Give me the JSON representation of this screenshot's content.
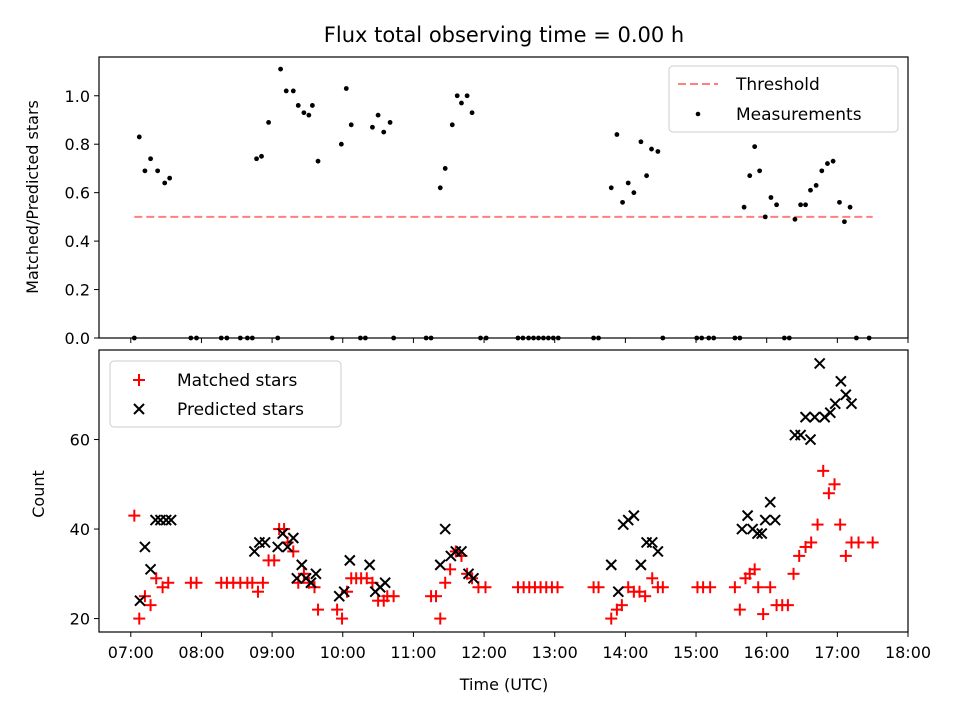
{
  "chart_data": [
    {
      "type": "scatter",
      "title": "Flux total observing time = 0.00 h",
      "xlabel": "",
      "ylabel": "Matched/Predicted stars",
      "xlim": [
        6.55,
        18.0
      ],
      "ylim": [
        0.0,
        1.16
      ],
      "yticks": [
        0.0,
        0.2,
        0.4,
        0.6,
        0.8,
        1.0
      ],
      "ytick_labels": [
        "0.0",
        "0.2",
        "0.4",
        "0.6",
        "0.8",
        "1.0"
      ],
      "grid": false,
      "legend_position": "top-right",
      "threshold": {
        "name": "Threshold",
        "color": "#ff7f7f",
        "y": 0.5,
        "x_start": 7.05,
        "x_end": 17.5,
        "style": "dashed"
      },
      "series": [
        {
          "name": "Measurements",
          "color": "#000000",
          "marker": "dot",
          "points": [
            [
              7.05,
              0.0
            ],
            [
              7.12,
              0.83
            ],
            [
              7.2,
              0.69
            ],
            [
              7.28,
              0.74
            ],
            [
              7.38,
              0.69
            ],
            [
              7.48,
              0.64
            ],
            [
              7.55,
              0.66
            ],
            [
              7.85,
              0.0
            ],
            [
              7.93,
              0.0
            ],
            [
              8.28,
              0.0
            ],
            [
              8.36,
              0.0
            ],
            [
              8.55,
              0.0
            ],
            [
              8.65,
              0.0
            ],
            [
              8.72,
              0.0
            ],
            [
              8.78,
              0.74
            ],
            [
              8.85,
              0.75
            ],
            [
              8.95,
              0.89
            ],
            [
              9.08,
              0.0
            ],
            [
              9.12,
              1.11
            ],
            [
              9.2,
              1.02
            ],
            [
              9.3,
              1.02
            ],
            [
              9.37,
              0.96
            ],
            [
              9.45,
              0.93
            ],
            [
              9.52,
              0.92
            ],
            [
              9.57,
              0.96
            ],
            [
              9.65,
              0.73
            ],
            [
              9.85,
              0.0
            ],
            [
              9.98,
              0.8
            ],
            [
              10.05,
              1.03
            ],
            [
              10.12,
              0.88
            ],
            [
              10.25,
              0.0
            ],
            [
              10.32,
              0.0
            ],
            [
              10.42,
              0.87
            ],
            [
              10.5,
              0.92
            ],
            [
              10.58,
              0.85
            ],
            [
              10.67,
              0.89
            ],
            [
              10.72,
              0.0
            ],
            [
              11.18,
              0.0
            ],
            [
              11.25,
              0.0
            ],
            [
              11.38,
              0.62
            ],
            [
              11.45,
              0.7
            ],
            [
              11.55,
              0.88
            ],
            [
              11.62,
              1.0
            ],
            [
              11.68,
              0.97
            ],
            [
              11.76,
              1.0
            ],
            [
              11.83,
              0.93
            ],
            [
              11.95,
              0.0
            ],
            [
              12.03,
              0.0
            ],
            [
              12.48,
              0.0
            ],
            [
              12.55,
              0.0
            ],
            [
              12.63,
              0.0
            ],
            [
              12.7,
              0.0
            ],
            [
              12.77,
              0.0
            ],
            [
              12.84,
              0.0
            ],
            [
              12.91,
              0.0
            ],
            [
              12.98,
              0.0
            ],
            [
              13.05,
              0.0
            ],
            [
              13.55,
              0.0
            ],
            [
              13.62,
              0.0
            ],
            [
              13.8,
              0.62
            ],
            [
              13.88,
              0.84
            ],
            [
              13.96,
              0.56
            ],
            [
              14.04,
              0.64
            ],
            [
              14.12,
              0.6
            ],
            [
              14.22,
              0.81
            ],
            [
              14.3,
              0.67
            ],
            [
              14.37,
              0.78
            ],
            [
              14.46,
              0.77
            ],
            [
              14.53,
              0.0
            ],
            [
              15.01,
              0.0
            ],
            [
              15.08,
              0.0
            ],
            [
              15.18,
              0.0
            ],
            [
              15.25,
              0.0
            ],
            [
              15.55,
              0.0
            ],
            [
              15.62,
              0.0
            ],
            [
              15.68,
              0.54
            ],
            [
              15.76,
              0.67
            ],
            [
              15.83,
              0.79
            ],
            [
              15.9,
              0.69
            ],
            [
              15.98,
              0.5
            ],
            [
              16.06,
              0.58
            ],
            [
              16.14,
              0.55
            ],
            [
              16.25,
              0.0
            ],
            [
              16.32,
              0.0
            ],
            [
              16.4,
              0.49
            ],
            [
              16.48,
              0.55
            ],
            [
              16.55,
              0.55
            ],
            [
              16.62,
              0.61
            ],
            [
              16.7,
              0.63
            ],
            [
              16.78,
              0.69
            ],
            [
              16.86,
              0.72
            ],
            [
              16.94,
              0.73
            ],
            [
              17.03,
              0.56
            ],
            [
              17.1,
              0.48
            ],
            [
              17.18,
              0.54
            ],
            [
              17.27,
              0.0
            ],
            [
              17.45,
              0.0
            ]
          ]
        }
      ]
    },
    {
      "type": "scatter",
      "title": "",
      "xlabel": "Time (UTC)",
      "ylabel": "Count",
      "xlim": [
        6.55,
        18.0
      ],
      "ylim": [
        17,
        80
      ],
      "yticks": [
        20,
        40,
        60
      ],
      "ytick_labels": [
        "20",
        "40",
        "60"
      ],
      "xticks": [
        7,
        8,
        9,
        10,
        11,
        12,
        13,
        14,
        15,
        16,
        17,
        18
      ],
      "xtick_labels": [
        "07:00",
        "08:00",
        "09:00",
        "10:00",
        "11:00",
        "12:00",
        "13:00",
        "14:00",
        "15:00",
        "16:00",
        "17:00",
        "18:00"
      ],
      "grid": false,
      "legend_position": "top-left",
      "series": [
        {
          "name": "Matched stars",
          "color": "#ff0000",
          "marker": "plus",
          "points": [
            [
              7.05,
              43
            ],
            [
              7.12,
              20
            ],
            [
              7.2,
              25
            ],
            [
              7.28,
              23
            ],
            [
              7.36,
              29
            ],
            [
              7.45,
              27
            ],
            [
              7.53,
              28
            ],
            [
              7.85,
              28
            ],
            [
              7.93,
              28
            ],
            [
              8.28,
              28
            ],
            [
              8.36,
              28
            ],
            [
              8.45,
              28
            ],
            [
              8.55,
              28
            ],
            [
              8.65,
              28
            ],
            [
              8.72,
              28
            ],
            [
              8.8,
              26
            ],
            [
              8.87,
              28
            ],
            [
              8.95,
              33
            ],
            [
              9.03,
              33
            ],
            [
              9.1,
              40
            ],
            [
              9.17,
              40
            ],
            [
              9.22,
              37
            ],
            [
              9.3,
              35
            ],
            [
              9.37,
              28
            ],
            [
              9.45,
              30
            ],
            [
              9.52,
              28
            ],
            [
              9.6,
              27
            ],
            [
              9.65,
              22
            ],
            [
              9.92,
              22
            ],
            [
              9.99,
              20
            ],
            [
              10.06,
              26
            ],
            [
              10.12,
              29
            ],
            [
              10.19,
              29
            ],
            [
              10.26,
              29
            ],
            [
              10.34,
              29
            ],
            [
              10.42,
              28
            ],
            [
              10.5,
              24
            ],
            [
              10.58,
              24
            ],
            [
              10.63,
              25
            ],
            [
              10.72,
              25
            ],
            [
              11.25,
              25
            ],
            [
              11.32,
              25
            ],
            [
              11.38,
              20
            ],
            [
              11.45,
              28
            ],
            [
              11.52,
              31
            ],
            [
              11.6,
              35
            ],
            [
              11.68,
              34
            ],
            [
              11.76,
              30
            ],
            [
              11.83,
              29
            ],
            [
              11.92,
              27
            ],
            [
              12.02,
              27
            ],
            [
              12.48,
              27
            ],
            [
              12.56,
              27
            ],
            [
              12.64,
              27
            ],
            [
              12.72,
              27
            ],
            [
              12.8,
              27
            ],
            [
              12.88,
              27
            ],
            [
              12.96,
              27
            ],
            [
              13.04,
              27
            ],
            [
              13.55,
              27
            ],
            [
              13.62,
              27
            ],
            [
              13.8,
              20
            ],
            [
              13.88,
              22
            ],
            [
              13.95,
              23
            ],
            [
              14.04,
              27
            ],
            [
              14.12,
              26
            ],
            [
              14.2,
              26
            ],
            [
              14.28,
              25
            ],
            [
              14.38,
              29
            ],
            [
              14.46,
              27
            ],
            [
              14.53,
              27
            ],
            [
              15.02,
              27
            ],
            [
              15.1,
              27
            ],
            [
              15.2,
              27
            ],
            [
              15.55,
              27
            ],
            [
              15.62,
              22
            ],
            [
              15.7,
              29
            ],
            [
              15.76,
              30
            ],
            [
              15.83,
              31
            ],
            [
              15.88,
              27
            ],
            [
              15.95,
              21
            ],
            [
              16.05,
              27
            ],
            [
              16.14,
              23
            ],
            [
              16.22,
              23
            ],
            [
              16.3,
              23
            ],
            [
              16.38,
              30
            ],
            [
              16.46,
              34
            ],
            [
              16.55,
              36
            ],
            [
              16.63,
              37
            ],
            [
              16.72,
              41
            ],
            [
              16.8,
              53
            ],
            [
              16.88,
              48
            ],
            [
              16.96,
              50
            ],
            [
              17.04,
              41
            ],
            [
              17.12,
              34
            ],
            [
              17.2,
              37
            ],
            [
              17.3,
              37
            ],
            [
              17.5,
              37
            ]
          ]
        },
        {
          "name": "Predicted stars",
          "color": "#000000",
          "marker": "x",
          "points": [
            [
              7.13,
              24
            ],
            [
              7.2,
              36
            ],
            [
              7.28,
              31
            ],
            [
              7.35,
              42
            ],
            [
              7.42,
              42
            ],
            [
              7.5,
              42
            ],
            [
              7.57,
              42
            ],
            [
              8.75,
              35
            ],
            [
              8.82,
              37
            ],
            [
              8.9,
              37
            ],
            [
              9.08,
              36
            ],
            [
              9.15,
              39
            ],
            [
              9.22,
              36
            ],
            [
              9.3,
              38
            ],
            [
              9.35,
              29
            ],
            [
              9.42,
              32
            ],
            [
              9.48,
              29
            ],
            [
              9.55,
              28
            ],
            [
              9.62,
              30
            ],
            [
              9.95,
              25
            ],
            [
              10.02,
              26
            ],
            [
              10.1,
              33
            ],
            [
              10.38,
              32
            ],
            [
              10.46,
              26
            ],
            [
              10.53,
              27
            ],
            [
              10.6,
              28
            ],
            [
              11.38,
              32
            ],
            [
              11.45,
              40
            ],
            [
              11.53,
              34
            ],
            [
              11.6,
              35
            ],
            [
              11.68,
              35
            ],
            [
              11.78,
              30
            ],
            [
              11.85,
              29
            ],
            [
              13.8,
              32
            ],
            [
              13.9,
              26
            ],
            [
              13.97,
              41
            ],
            [
              14.04,
              42
            ],
            [
              14.12,
              43
            ],
            [
              14.22,
              32
            ],
            [
              14.3,
              37
            ],
            [
              14.38,
              37
            ],
            [
              14.46,
              35
            ],
            [
              15.65,
              40
            ],
            [
              15.73,
              43
            ],
            [
              15.8,
              40
            ],
            [
              15.87,
              39
            ],
            [
              15.93,
              39
            ],
            [
              15.98,
              42
            ],
            [
              16.05,
              46
            ],
            [
              16.12,
              42
            ],
            [
              16.4,
              61
            ],
            [
              16.48,
              61
            ],
            [
              16.55,
              65
            ],
            [
              16.62,
              60
            ],
            [
              16.68,
              65
            ],
            [
              16.75,
              77
            ],
            [
              16.82,
              65
            ],
            [
              16.9,
              66
            ],
            [
              16.97,
              68
            ],
            [
              17.05,
              73
            ],
            [
              17.12,
              70
            ],
            [
              17.2,
              68
            ]
          ]
        }
      ]
    }
  ]
}
